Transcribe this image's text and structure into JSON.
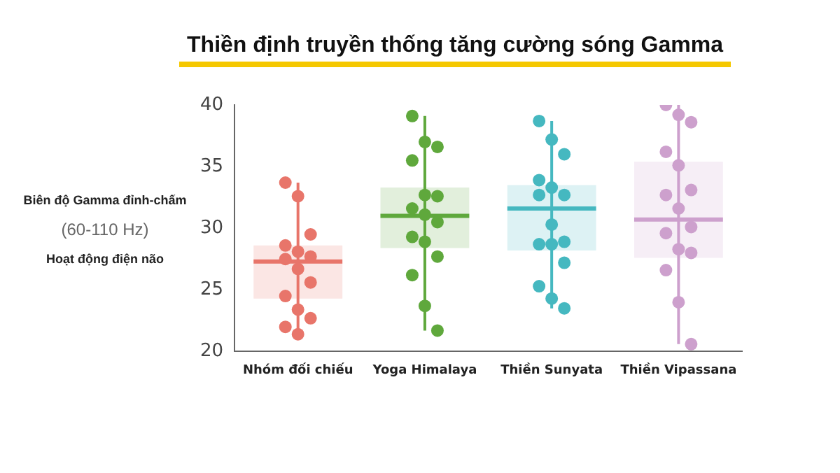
{
  "chart_data": {
    "type": "box",
    "title": "Thiền định truyền thống tăng cường sóng Gamma",
    "ylabel": "Biên độ Gamma đỉnh-chấm\n(60-110 Hz)\nHoạt động điện não",
    "categories": [
      "Nhóm đối chiếu",
      "Yoga Himalaya",
      "Thiền Sunyata",
      "Thiền Vipassana"
    ],
    "colors": [
      "#e8756a",
      "#5fa83c",
      "#45b8c0",
      "#cda0cd"
    ],
    "boxes": [
      {
        "low": 21.4,
        "q1": 24.3,
        "median": 27.3,
        "q3": 28.6,
        "high": 33.7
      },
      {
        "low": 21.7,
        "q1": 28.4,
        "median": 31.0,
        "q3": 33.3,
        "high": 39.1
      },
      {
        "low": 23.5,
        "q1": 28.2,
        "median": 31.6,
        "q3": 33.5,
        "high": 38.7
      },
      {
        "low": 20.6,
        "q1": 27.6,
        "median": 30.7,
        "q3": 35.4,
        "high": 40.0
      }
    ],
    "series": [
      {
        "type": "scatter",
        "color": "#e8756a",
        "x": [
          "Nhóm đối chiếu",
          "Nhóm đối chiếu",
          "Nhóm đối chiếu",
          "Nhóm đối chiếu",
          "Nhóm đối chiếu",
          "Nhóm đối chiếu",
          "Nhóm đối chiếu",
          "Nhóm đối chiếu",
          "Nhóm đối chiếu",
          "Nhóm đối chiếu",
          "Nhóm đối chiếu",
          "Nhóm đối chiếu",
          "Nhóm đối chiếu",
          "Nhóm đối chiếu"
        ],
        "values": [
          33.7,
          32.6,
          29.5,
          28.6,
          28.1,
          27.7,
          27.5,
          26.7,
          25.6,
          24.5,
          23.4,
          22.7,
          22.0,
          21.4
        ]
      },
      {
        "type": "scatter",
        "color": "#5fa83c",
        "x": [
          "Yoga Himalaya",
          "Yoga Himalaya",
          "Yoga Himalaya",
          "Yoga Himalaya",
          "Yoga Himalaya",
          "Yoga Himalaya",
          "Yoga Himalaya",
          "Yoga Himalaya",
          "Yoga Himalaya",
          "Yoga Himalaya",
          "Yoga Himalaya",
          "Yoga Himalaya",
          "Yoga Himalaya",
          "Yoga Himalaya",
          "Yoga Himalaya"
        ],
        "values": [
          39.1,
          37.0,
          36.6,
          35.5,
          32.7,
          32.6,
          31.6,
          31.1,
          30.5,
          29.3,
          28.9,
          27.7,
          26.2,
          23.7,
          21.7
        ]
      },
      {
        "type": "scatter",
        "color": "#45b8c0",
        "x": [
          "Thiền Sunyata",
          "Thiền Sunyata",
          "Thiền Sunyata",
          "Thiền Sunyata",
          "Thiền Sunyata",
          "Thiền Sunyata",
          "Thiền Sunyata",
          "Thiền Sunyata",
          "Thiền Sunyata",
          "Thiền Sunyata",
          "Thiền Sunyata",
          "Thiền Sunyata",
          "Thiền Sunyata",
          "Thiền Sunyata",
          "Thiền Sunyata"
        ],
        "values": [
          38.7,
          37.2,
          36.0,
          33.9,
          33.3,
          32.7,
          32.7,
          30.3,
          28.9,
          28.7,
          28.7,
          27.2,
          25.3,
          24.3,
          23.5
        ]
      },
      {
        "type": "scatter",
        "color": "#cda0cd",
        "x": [
          "Thiền Vipassana",
          "Thiền Vipassana",
          "Thiền Vipassana",
          "Thiền Vipassana",
          "Thiền Vipassana",
          "Thiền Vipassana",
          "Thiền Vipassana",
          "Thiền Vipassana",
          "Thiền Vipassana",
          "Thiền Vipassana",
          "Thiền Vipassana",
          "Thiền Vipassana",
          "Thiền Vipassana",
          "Thiền Vipassana",
          "Thiền Vipassana"
        ],
        "values": [
          40.0,
          39.2,
          38.6,
          36.2,
          35.1,
          33.1,
          32.7,
          31.6,
          30.1,
          29.6,
          28.3,
          28.0,
          26.6,
          24.0,
          20.6
        ]
      }
    ],
    "ylim": [
      20,
      40
    ],
    "yticks": [
      20,
      25,
      30,
      35,
      40
    ],
    "marker": "circle"
  }
}
